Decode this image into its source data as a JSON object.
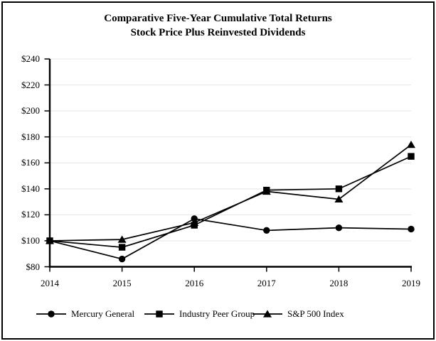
{
  "frame": {
    "border_color": "#000000",
    "background": "#ffffff"
  },
  "title": {
    "line1": "Comparative Five-Year Cumulative Total Returns",
    "line2": "Stock Price Plus Reinvested Dividends"
  },
  "chart_data": {
    "type": "line",
    "title": "Comparative Five-Year Cumulative Total Returns",
    "subtitle": "Stock Price Plus Reinvested Dividends",
    "x_labels": [
      "2014",
      "2015",
      "2016",
      "2017",
      "2018",
      "2019"
    ],
    "y_ticks": [
      80,
      100,
      120,
      140,
      160,
      180,
      200,
      220,
      240
    ],
    "y_tick_labels": [
      "$80",
      "$100",
      "$120",
      "$140",
      "$160",
      "$180",
      "$200",
      "$220",
      "$240"
    ],
    "ylim": [
      80,
      240
    ],
    "grid": true,
    "legend_position": "bottom",
    "series": [
      {
        "name": "Mercury General",
        "marker": "circle",
        "color": "#000000",
        "values": [
          100,
          86,
          117,
          108,
          110,
          109
        ]
      },
      {
        "name": "Industry Peer Group",
        "marker": "square",
        "color": "#000000",
        "values": [
          100,
          95,
          112,
          139,
          140,
          165
        ]
      },
      {
        "name": "S&P 500 Index",
        "marker": "triangle",
        "color": "#000000",
        "values": [
          100,
          101,
          114,
          138,
          132,
          174
        ]
      }
    ],
    "colors": {
      "axis": "#000000",
      "grid": "#e4e4e4",
      "text": "#000000",
      "background": "#ffffff"
    }
  }
}
